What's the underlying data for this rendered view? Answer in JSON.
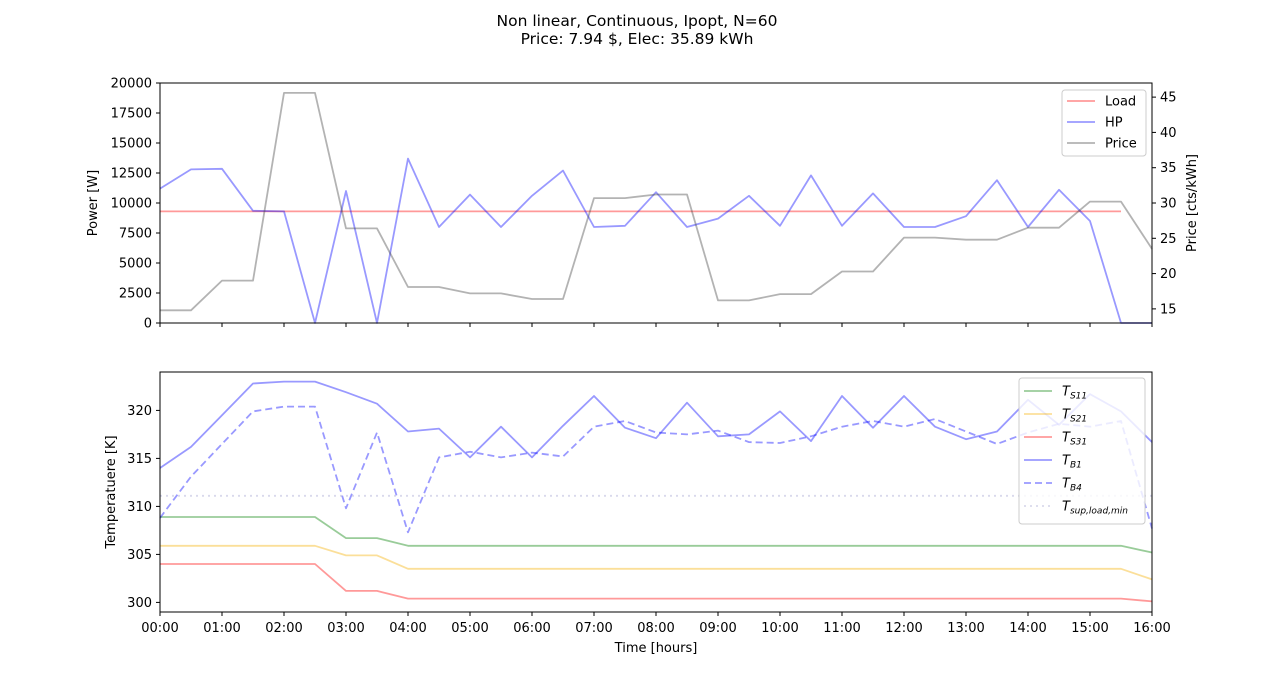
{
  "figure": {
    "title_line1": "Non linear, Continuous, Ipopt, N=60",
    "title_line2": "Price: 7.94 $, Elec: 35.89 kWh"
  },
  "chart_data": [
    {
      "type": "line",
      "ylabel": "Power [W]",
      "y2label": "Price [cts/kWh]",
      "ylim": [
        0,
        20000
      ],
      "y2lim": [
        13,
        47
      ],
      "xlim": [
        0,
        16
      ],
      "yticks": [
        "0",
        "2500",
        "5000",
        "7500",
        "10000",
        "12500",
        "15000",
        "17500",
        "20000"
      ],
      "y2ticks": [
        "15",
        "20",
        "25",
        "30",
        "35",
        "40",
        "45"
      ],
      "legend_position": "top-right",
      "x": [
        0,
        0.5,
        1,
        1.5,
        2,
        2.5,
        3,
        3.5,
        4,
        4.5,
        5,
        5.5,
        6,
        6.5,
        7,
        7.5,
        8,
        8.5,
        9,
        9.5,
        10,
        10.5,
        11,
        11.5,
        12,
        12.5,
        13,
        13.5,
        14,
        14.5,
        15,
        15.5,
        16
      ],
      "series": [
        {
          "name": "Load",
          "axis": "left",
          "color": "#ff0000",
          "style": "solid",
          "values": [
            9300,
            9300,
            9300,
            9300,
            9300,
            9300,
            9300,
            9300,
            9300,
            9300,
            9300,
            9300,
            9300,
            9300,
            9300,
            9300,
            9300,
            9300,
            9300,
            9300,
            9300,
            9300,
            9300,
            9300,
            9300,
            9300,
            9300,
            9300,
            9300,
            9300,
            9300,
            9300,
            null
          ]
        },
        {
          "name": "HP",
          "axis": "left",
          "color": "#0000ff",
          "style": "solid",
          "values": [
            11200,
            12800,
            12850,
            9350,
            9300,
            0,
            11000,
            0,
            13700,
            8000,
            10700,
            8000,
            10600,
            12700,
            8000,
            8100,
            10900,
            8000,
            8700,
            10600,
            8100,
            12300,
            8100,
            10800,
            8000,
            8000,
            8900,
            11900,
            8000,
            11100,
            8500,
            0,
            0
          ]
        },
        {
          "name": "Price",
          "axis": "right",
          "color": "#404040",
          "style": "solid",
          "values": [
            14.8,
            14.8,
            19.0,
            19.0,
            45.6,
            45.6,
            26.4,
            26.4,
            18.1,
            18.1,
            17.2,
            17.2,
            16.4,
            16.4,
            30.7,
            30.7,
            31.2,
            31.2,
            16.2,
            16.2,
            17.1,
            17.1,
            20.3,
            20.3,
            25.1,
            25.1,
            24.8,
            24.8,
            26.5,
            26.5,
            30.2,
            30.2,
            23.5
          ]
        }
      ]
    },
    {
      "type": "line",
      "xlabel": "Time [hours]",
      "ylabel": "Temperatuere [K]",
      "ylim": [
        299,
        324
      ],
      "xlim": [
        0,
        16
      ],
      "yticks": [
        "300",
        "305",
        "310",
        "315",
        "320"
      ],
      "xticks": [
        "00:00",
        "01:00",
        "02:00",
        "03:00",
        "04:00",
        "05:00",
        "06:00",
        "07:00",
        "08:00",
        "09:00",
        "10:00",
        "11:00",
        "12:00",
        "13:00",
        "14:00",
        "15:00",
        "16:00"
      ],
      "legend_position": "top-right",
      "x": [
        0,
        0.5,
        1,
        1.5,
        2,
        2.5,
        3,
        3.5,
        4,
        4.5,
        5,
        5.5,
        6,
        6.5,
        7,
        7.5,
        8,
        8.5,
        9,
        9.5,
        10,
        10.5,
        11,
        11.5,
        12,
        12.5,
        13,
        13.5,
        14,
        14.5,
        15,
        15.5,
        16
      ],
      "series": [
        {
          "name_main": "T",
          "name_sub": "S11",
          "color": "#008000",
          "style": "solid",
          "values": [
            308.9,
            308.9,
            308.9,
            308.9,
            308.9,
            308.9,
            306.7,
            306.7,
            305.9,
            305.9,
            305.9,
            305.9,
            305.9,
            305.9,
            305.9,
            305.9,
            305.9,
            305.9,
            305.9,
            305.9,
            305.9,
            305.9,
            305.9,
            305.9,
            305.9,
            305.9,
            305.9,
            305.9,
            305.9,
            305.9,
            305.9,
            305.9,
            305.2
          ]
        },
        {
          "name_main": "T",
          "name_sub": "S21",
          "color": "#f5b000",
          "style": "solid",
          "values": [
            305.9,
            305.9,
            305.9,
            305.9,
            305.9,
            305.9,
            304.9,
            304.9,
            303.5,
            303.5,
            303.5,
            303.5,
            303.5,
            303.5,
            303.5,
            303.5,
            303.5,
            303.5,
            303.5,
            303.5,
            303.5,
            303.5,
            303.5,
            303.5,
            303.5,
            303.5,
            303.5,
            303.5,
            303.5,
            303.5,
            303.5,
            303.5,
            302.4
          ]
        },
        {
          "name_main": "T",
          "name_sub": "S31",
          "color": "#ff0000",
          "style": "solid",
          "values": [
            304.0,
            304.0,
            304.0,
            304.0,
            304.0,
            304.0,
            301.2,
            301.2,
            300.4,
            300.4,
            300.4,
            300.4,
            300.4,
            300.4,
            300.4,
            300.4,
            300.4,
            300.4,
            300.4,
            300.4,
            300.4,
            300.4,
            300.4,
            300.4,
            300.4,
            300.4,
            300.4,
            300.4,
            300.4,
            300.4,
            300.4,
            300.4,
            300.1
          ]
        },
        {
          "name_main": "T",
          "name_sub": "B1",
          "color": "#0000ff",
          "style": "solid",
          "values": [
            314.0,
            316.2,
            319.5,
            322.8,
            323.0,
            323.0,
            321.9,
            320.7,
            317.8,
            318.1,
            315.1,
            318.3,
            315.1,
            318.4,
            321.5,
            318.2,
            317.1,
            320.8,
            317.3,
            317.5,
            319.9,
            316.8,
            321.5,
            318.2,
            321.5,
            318.3,
            317.0,
            317.8,
            321.1,
            318.5,
            321.7,
            319.9,
            316.7
          ]
        },
        {
          "name_main": "T",
          "name_sub": "B4",
          "color": "#0000ff",
          "style": "dashed",
          "values": [
            308.8,
            313.1,
            316.5,
            319.9,
            320.4,
            320.4,
            309.8,
            317.7,
            307.3,
            315.1,
            315.7,
            315.1,
            315.6,
            315.2,
            318.3,
            318.9,
            317.7,
            317.5,
            317.9,
            316.7,
            316.6,
            317.3,
            318.3,
            318.9,
            318.3,
            319.1,
            317.8,
            316.5,
            317.7,
            318.6,
            318.3,
            318.9,
            307.7
          ]
        },
        {
          "name_main": "T",
          "name_sub": "sup,load,min",
          "color": "#a0a0d0",
          "style": "dotted",
          "values": [
            311.1,
            311.1,
            311.1,
            311.1,
            311.1,
            311.1,
            311.1,
            311.1,
            311.1,
            311.1,
            311.1,
            311.1,
            311.1,
            311.1,
            311.1,
            311.1,
            311.1,
            311.1,
            311.1,
            311.1,
            311.1,
            311.1,
            311.1,
            311.1,
            311.1,
            311.1,
            311.1,
            311.1,
            311.1,
            311.1,
            311.1,
            311.1,
            311.1
          ]
        }
      ]
    }
  ]
}
